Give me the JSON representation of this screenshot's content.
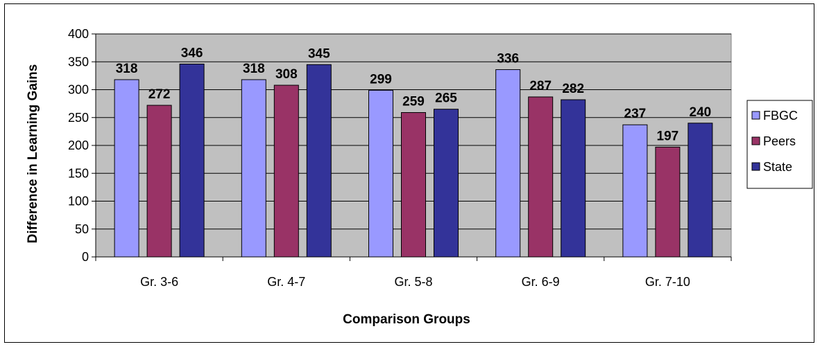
{
  "chart_data": {
    "type": "bar",
    "title": "",
    "xlabel": "Comparison Groups",
    "ylabel": "Difference in Learning Gains",
    "categories": [
      "Gr. 3-6",
      "Gr. 4-7",
      "Gr. 5-8",
      "Gr. 6-9",
      "Gr. 7-10"
    ],
    "series": [
      {
        "name": "FBGC",
        "values": [
          318,
          318,
          299,
          336,
          237
        ]
      },
      {
        "name": "Peers",
        "values": [
          272,
          308,
          259,
          287,
          197
        ]
      },
      {
        "name": "State",
        "values": [
          346,
          345,
          265,
          282,
          240
        ]
      }
    ],
    "ylim": [
      0,
      400
    ],
    "yticks": [
      0,
      50,
      100,
      150,
      200,
      250,
      300,
      350,
      400
    ],
    "grid": true,
    "legend_position": "right",
    "colors": {
      "plot_background": "#C0C0C0",
      "series": [
        "#9999FF",
        "#993366",
        "#333399"
      ]
    }
  }
}
